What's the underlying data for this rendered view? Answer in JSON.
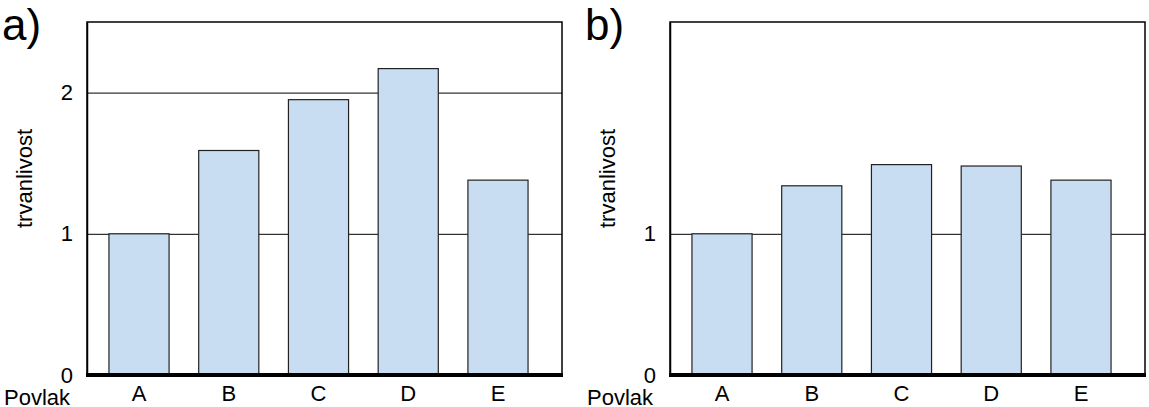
{
  "chart_data": [
    {
      "type": "bar",
      "title": "a)",
      "x_label": "Povlak",
      "y_label": "trvanlivost",
      "categories": [
        "A",
        "B",
        "C",
        "D",
        "E"
      ],
      "values": [
        1.0,
        1.59,
        1.95,
        2.17,
        1.38
      ],
      "color": "#c9ddf2",
      "ylim": [
        0,
        2.5
      ],
      "yticks": [
        0,
        1,
        2
      ],
      "grid": true
    },
    {
      "type": "bar",
      "title": "b)",
      "x_label": "Povlak",
      "y_label": "trvanlivost",
      "categories": [
        "A",
        "B",
        "C",
        "D",
        "E"
      ],
      "values": [
        1.0,
        1.34,
        1.49,
        1.48,
        1.38
      ],
      "color": "#c9ddf2",
      "ylim": [
        0,
        2.5
      ],
      "yticks": [
        0,
        1
      ],
      "grid": true
    }
  ]
}
